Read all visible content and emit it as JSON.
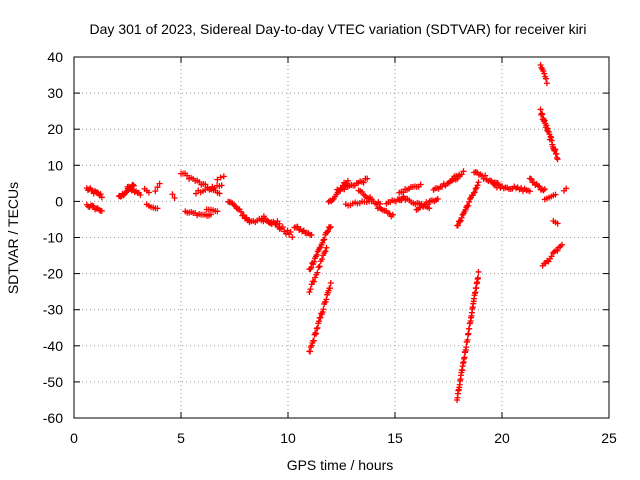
{
  "chart_data": {
    "type": "scatter",
    "title": "Day 301 of 2023, Sidereal Day-to-day VTEC variation (SDTVAR) for receiver kiri",
    "xlabel": "GPS time / hours",
    "ylabel": "SDTVAR / TECUs",
    "xlim": [
      0,
      25
    ],
    "ylim": [
      -60,
      40
    ],
    "x_ticks": [
      "0",
      "5",
      "10",
      "15",
      "20",
      "25"
    ],
    "y_ticks": [
      "-60",
      "-50",
      "-40",
      "-30",
      "-20",
      "-10",
      "0",
      "10",
      "20",
      "30",
      "40"
    ],
    "grid": true,
    "grid_style": "dotted",
    "marker": "+",
    "color": "#ff0000",
    "segments": [
      {
        "x": [
          0.6,
          1.3
        ],
        "y": [
          3.5,
          1.5
        ],
        "n": 14,
        "spread": 1.2
      },
      {
        "x": [
          0.6,
          1.3
        ],
        "y": [
          -1.0,
          -2.5
        ],
        "n": 12,
        "spread": 1.0
      },
      {
        "x": [
          2.1,
          2.8
        ],
        "y": [
          1.0,
          4.5
        ],
        "n": 18,
        "spread": 1.0
      },
      {
        "x": [
          2.5,
          3.1
        ],
        "y": [
          4.0,
          2.0
        ],
        "n": 10,
        "spread": 0.8
      },
      {
        "x": [
          3.3,
          3.5
        ],
        "y": [
          3.5,
          2.5
        ],
        "n": 3,
        "spread": 0.3
      },
      {
        "x": [
          3.4,
          3.9
        ],
        "y": [
          -1.0,
          -2.0
        ],
        "n": 6,
        "spread": 0.4
      },
      {
        "x": [
          3.8,
          4.0
        ],
        "y": [
          3.0,
          5.0
        ],
        "n": 3,
        "spread": 0.3
      },
      {
        "x": [
          4.6,
          4.7
        ],
        "y": [
          2.0,
          1.0
        ],
        "n": 2,
        "spread": 0.2
      },
      {
        "x": [
          5.2,
          6.4
        ],
        "y": [
          -3.0,
          -4.0
        ],
        "n": 14,
        "spread": 0.8
      },
      {
        "x": [
          5.0,
          6.8
        ],
        "y": [
          8.0,
          2.0
        ],
        "n": 20,
        "spread": 1.0
      },
      {
        "x": [
          5.7,
          6.9
        ],
        "y": [
          2.5,
          4.5
        ],
        "n": 12,
        "spread": 0.8
      },
      {
        "x": [
          6.2,
          6.7
        ],
        "y": [
          -2.0,
          -3.0
        ],
        "n": 6,
        "spread": 0.5
      },
      {
        "x": [
          6.7,
          7.0
        ],
        "y": [
          6.0,
          7.0
        ],
        "n": 3,
        "spread": 0.3
      },
      {
        "x": [
          7.2,
          8.2
        ],
        "y": [
          0.5,
          -5.5
        ],
        "n": 16,
        "spread": 1.2
      },
      {
        "x": [
          8.0,
          9.6
        ],
        "y": [
          -5.0,
          -6.0
        ],
        "n": 18,
        "spread": 1.2
      },
      {
        "x": [
          8.8,
          10.2
        ],
        "y": [
          -4.0,
          -9.5
        ],
        "n": 20,
        "spread": 1.5
      },
      {
        "x": [
          10.3,
          11.1
        ],
        "y": [
          -7.0,
          -9.5
        ],
        "n": 12,
        "spread": 1.0
      },
      {
        "x": [
          11.0,
          12.0
        ],
        "y": [
          -19.0,
          -6.5
        ],
        "n": 24,
        "spread": 1.2
      },
      {
        "x": [
          11.0,
          11.8
        ],
        "y": [
          -25.0,
          -13.0
        ],
        "n": 16,
        "spread": 1.0
      },
      {
        "x": [
          11.0,
          12.0
        ],
        "y": [
          -42.0,
          -23.0
        ],
        "n": 30,
        "spread": 1.2
      },
      {
        "x": [
          11.9,
          12.8
        ],
        "y": [
          -0.5,
          6.0
        ],
        "n": 16,
        "spread": 1.2
      },
      {
        "x": [
          12.3,
          13.7
        ],
        "y": [
          3.0,
          6.0
        ],
        "n": 18,
        "spread": 1.0
      },
      {
        "x": [
          12.7,
          13.9
        ],
        "y": [
          -1.0,
          0.0
        ],
        "n": 12,
        "spread": 0.8
      },
      {
        "x": [
          13.3,
          14.3
        ],
        "y": [
          3.0,
          -1.0
        ],
        "n": 14,
        "spread": 1.0
      },
      {
        "x": [
          14.2,
          14.9
        ],
        "y": [
          -2.0,
          -4.0
        ],
        "n": 10,
        "spread": 1.0
      },
      {
        "x": [
          14.6,
          15.4
        ],
        "y": [
          -0.5,
          1.0
        ],
        "n": 10,
        "spread": 0.8
      },
      {
        "x": [
          15.2,
          16.2
        ],
        "y": [
          2.5,
          4.5
        ],
        "n": 12,
        "spread": 0.8
      },
      {
        "x": [
          15.2,
          16.6
        ],
        "y": [
          1.0,
          -1.5
        ],
        "n": 16,
        "spread": 1.0
      },
      {
        "x": [
          16.0,
          17.0
        ],
        "y": [
          -2.0,
          1.0
        ],
        "n": 14,
        "spread": 1.0
      },
      {
        "x": [
          16.8,
          18.0
        ],
        "y": [
          3.0,
          7.0
        ],
        "n": 16,
        "spread": 1.0
      },
      {
        "x": [
          17.6,
          18.2
        ],
        "y": [
          6.0,
          8.0
        ],
        "n": 8,
        "spread": 0.8
      },
      {
        "x": [
          17.9,
          18.9
        ],
        "y": [
          -7.0,
          5.0
        ],
        "n": 24,
        "spread": 1.0
      },
      {
        "x": [
          17.9,
          18.9
        ],
        "y": [
          -55.0,
          -20.0
        ],
        "n": 50,
        "spread": 1.0
      },
      {
        "x": [
          18.7,
          19.8
        ],
        "y": [
          8.0,
          5.0
        ],
        "n": 16,
        "spread": 1.2
      },
      {
        "x": [
          19.6,
          21.3
        ],
        "y": [
          4.5,
          3.0
        ],
        "n": 22,
        "spread": 1.0
      },
      {
        "x": [
          21.3,
          22.0
        ],
        "y": [
          6.0,
          3.0
        ],
        "n": 12,
        "spread": 1.2
      },
      {
        "x": [
          21.8,
          22.1
        ],
        "y": [
          38.0,
          33.0
        ],
        "n": 8,
        "spread": 0.8
      },
      {
        "x": [
          21.8,
          22.6
        ],
        "y": [
          25.0,
          12.0
        ],
        "n": 30,
        "spread": 1.5
      },
      {
        "x": [
          22.0,
          22.5
        ],
        "y": [
          0.5,
          2.0
        ],
        "n": 6,
        "spread": 0.5
      },
      {
        "x": [
          22.9,
          23.0
        ],
        "y": [
          3.0,
          3.5
        ],
        "n": 2,
        "spread": 0.2
      },
      {
        "x": [
          22.4,
          22.6
        ],
        "y": [
          -5.5,
          -6.0
        ],
        "n": 3,
        "spread": 0.3
      },
      {
        "x": [
          21.9,
          22.8
        ],
        "y": [
          -18.0,
          -12.0
        ],
        "n": 14,
        "spread": 1.0
      }
    ]
  }
}
